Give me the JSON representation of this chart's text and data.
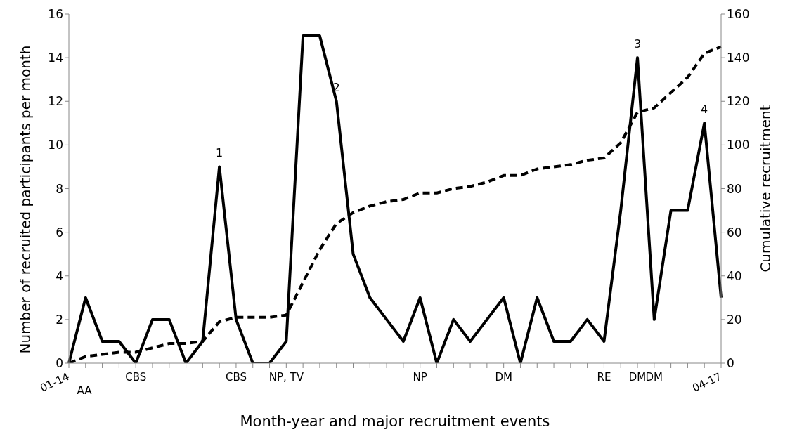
{
  "chart_data": {
    "type": "line",
    "xlabel": "Month-year and major recruitment events",
    "ylabel": "Number of recruited participants per month",
    "y2label": "Cumulative recruitment",
    "categories": [
      "01-14",
      null,
      null,
      null,
      "CBS",
      null,
      null,
      null,
      null,
      null,
      "CBS",
      null,
      null,
      "NP, TV",
      null,
      null,
      null,
      null,
      null,
      null,
      null,
      "NP",
      null,
      null,
      null,
      null,
      "DM",
      null,
      null,
      null,
      null,
      null,
      "RE",
      null,
      "DM",
      "DM",
      null,
      null,
      null,
      "04-17"
    ],
    "series": [
      {
        "color": "#000000",
        "line_style": "solid",
        "values": [
          0,
          3,
          1,
          1,
          0,
          2,
          2,
          0,
          1,
          9,
          2,
          0,
          0,
          1,
          15,
          15,
          12,
          5,
          3,
          2,
          1,
          3,
          0,
          2,
          1,
          2,
          3,
          0,
          3,
          1,
          1,
          2,
          1,
          7,
          14,
          2,
          7,
          7,
          11,
          3
        ]
      },
      {
        "color": "#000000",
        "line_style": "dashed",
        "axis": "y2",
        "values": [
          0,
          3,
          4,
          5,
          5,
          7,
          9,
          9,
          10,
          19,
          21,
          21,
          21,
          22,
          37,
          52,
          64,
          69,
          72,
          74,
          75,
          78,
          78,
          80,
          81,
          83,
          86,
          86,
          89,
          90,
          91,
          93,
          94,
          101,
          115,
          117,
          124,
          131,
          142,
          145
        ]
      }
    ],
    "ylim": [
      0,
      16
    ],
    "yticks": [
      0,
      2,
      4,
      6,
      8,
      10,
      12,
      14,
      16
    ],
    "y2lim": [
      0,
      160
    ],
    "y2ticks": [
      0,
      20,
      40,
      60,
      80,
      100,
      120,
      140,
      160
    ],
    "grid": false,
    "legend": false,
    "marker": "none",
    "annotations": [
      "AA",
      {
        "text": "1",
        "y": 9
      },
      {
        "text": "2",
        "y": 12
      },
      {
        "text": "3",
        "y": 14
      },
      {
        "text": "4",
        "y": 11
      }
    ]
  }
}
